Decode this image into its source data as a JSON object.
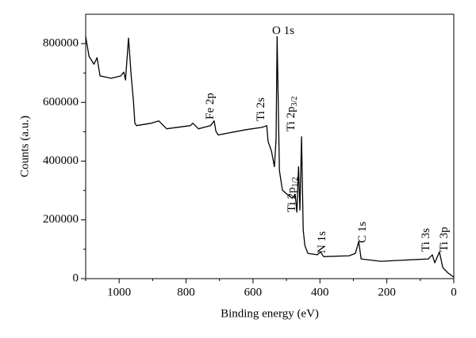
{
  "chart_data": {
    "type": "line",
    "xlabel": "Binding energy (eV)",
    "ylabel": "Counts (a.u.)",
    "xlim": [
      1100,
      0
    ],
    "ylim": [
      0,
      900000
    ],
    "xticks": [
      1000,
      800,
      600,
      400,
      200,
      0
    ],
    "xminor": [
      1100,
      900,
      700,
      500,
      300,
      100
    ],
    "yticks": [
      0,
      200000,
      400000,
      600000,
      800000
    ],
    "yminor": [
      100000,
      300000,
      500000,
      700000
    ],
    "series": [
      {
        "color": "#000000",
        "x": [
          1100,
          1090,
          1075,
          1066,
          1057,
          1024,
          995,
          986,
          981,
          972,
          964,
          957,
          953,
          948,
          905,
          882,
          858,
          787,
          780,
          763,
          727,
          716,
          711,
          704,
          621,
          573,
          559,
          555,
          545,
          536,
          531,
          528,
          521,
          512,
          498,
          483,
          474,
          469,
          464,
          460,
          455,
          450,
          445,
          436,
          408,
          398,
          389,
          313,
          294,
          284,
          277,
          218,
          76,
          64,
          57,
          43,
          33,
          17,
          0
        ],
        "values": [
          824000,
          757000,
          730000,
          752000,
          690000,
          682000,
          690000,
          703000,
          676000,
          819000,
          690000,
          601000,
          529000,
          521000,
          529000,
          537000,
          510000,
          521000,
          529000,
          510000,
          521000,
          537000,
          502000,
          489000,
          507000,
          515000,
          521000,
          467000,
          435000,
          381000,
          475000,
          824000,
          368000,
          301000,
          287000,
          274000,
          287000,
          226000,
          381000,
          233000,
          483000,
          166000,
          113000,
          86000,
          81000,
          91000,
          75000,
          78000,
          86000,
          126000,
          67000,
          59000,
          67000,
          81000,
          54000,
          91000,
          38000,
          19000,
          5000
        ]
      }
    ],
    "annotations": [
      {
        "text": "O 1s"
      },
      {
        "text": "Fe 2p"
      },
      {
        "text": "Ti 2s"
      },
      {
        "text": "Ti 2p",
        "subscript": "3/2"
      },
      {
        "text": "Ti 2p",
        "subscript": "1/2"
      },
      {
        "text": "N 1s"
      },
      {
        "text": "C 1s"
      },
      {
        "text": "Ti 3s"
      },
      {
        "text": "Ti 3p"
      }
    ]
  }
}
